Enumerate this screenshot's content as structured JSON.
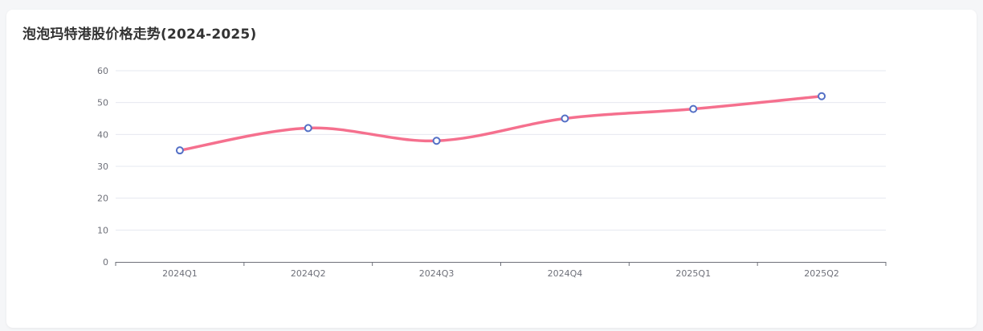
{
  "title": "泡泡玛特港股价格走势(2024-2025)",
  "colors": {
    "line": "#f5708e",
    "marker_stroke": "#5470c6",
    "marker_fill": "#ffffff",
    "grid": "#e6e8f0",
    "axis": "#6e7079"
  },
  "chart_data": {
    "type": "line",
    "title": "泡泡玛特港股价格走势(2024-2025)",
    "categories": [
      "2024Q1",
      "2024Q2",
      "2024Q3",
      "2024Q4",
      "2025Q1",
      "2025Q2"
    ],
    "series": [
      {
        "values": [
          35,
          42,
          38,
          45,
          48,
          52
        ]
      }
    ],
    "ylim": [
      0,
      60
    ],
    "yticks": [
      0,
      10,
      20,
      30,
      40,
      50,
      60
    ],
    "smooth": true,
    "grid": true,
    "legend": "none"
  }
}
